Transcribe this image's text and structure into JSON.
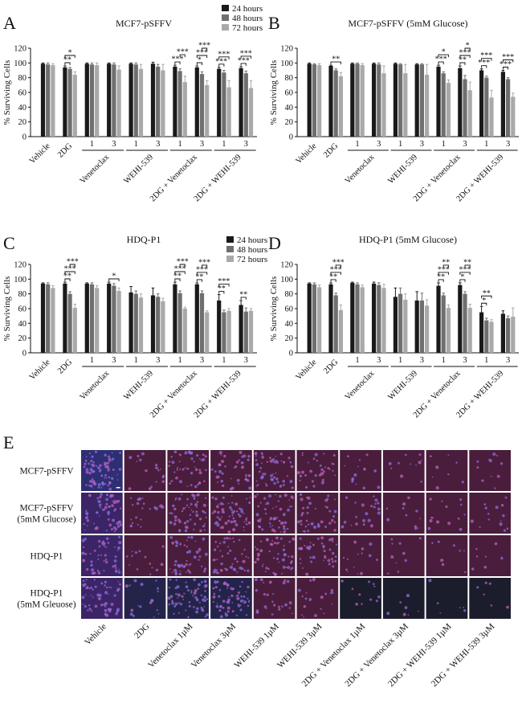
{
  "panel_letters": [
    "A",
    "B",
    "C",
    "D",
    "E"
  ],
  "colors": {
    "24h": "#1a1a1a",
    "48h": "#6f6f6f",
    "72h": "#a9a9a9"
  },
  "chart_data": [
    {
      "type": "bar",
      "panel": "A",
      "title": "MCF7-pSFFV",
      "ylabel": "% Surviving Cells",
      "ylim": [
        0,
        120
      ],
      "yticks": [
        0,
        20,
        40,
        60,
        80,
        100,
        120
      ],
      "legend": [
        "24 hours",
        "48 hours",
        "72 hours"
      ],
      "legend_position": "top-right",
      "categories": [
        "Vehicle",
        "2DG",
        "1",
        "3",
        "1",
        "3",
        "1",
        "3",
        "1",
        "3"
      ],
      "groups": [
        {
          "label": "Venetoclax",
          "from": 2,
          "to": 3
        },
        {
          "label": "WEHI-539",
          "from": 4,
          "to": 5
        },
        {
          "label": "2DG + Venetoclax",
          "from": 6,
          "to": 7
        },
        {
          "label": "2DG + WEHI-539",
          "from": 8,
          "to": 9
        }
      ],
      "series": [
        {
          "name": "24 hours",
          "values": [
            99,
            94,
            99,
            99,
            99,
            99,
            95,
            94,
            92,
            93
          ]
        },
        {
          "name": "48 hours",
          "values": [
            98,
            92,
            98,
            98,
            98,
            95,
            89,
            85,
            87,
            86
          ]
        },
        {
          "name": "72 hours",
          "values": [
            97,
            84,
            97,
            91,
            92,
            90,
            74,
            70,
            67,
            66
          ]
        }
      ],
      "errors": [
        [
          1,
          2,
          1,
          1,
          1,
          2,
          2,
          2,
          2,
          2
        ],
        [
          2,
          2,
          2,
          2,
          2,
          3,
          3,
          3,
          3,
          3
        ],
        [
          2,
          4,
          3,
          5,
          6,
          8,
          8,
          6,
          9,
          10
        ]
      ],
      "significance": [
        {
          "cat": 1,
          "pairs": [
            [
              "24h",
              "48h",
              "**"
            ],
            [
              "24h",
              "72h",
              "*"
            ]
          ]
        },
        {
          "cat": 6,
          "pairs": [
            [
              "24h",
              "48h",
              "***"
            ],
            [
              "48h",
              "72h",
              "***"
            ]
          ]
        },
        {
          "cat": 7,
          "pairs": [
            [
              "24h",
              "48h",
              "*"
            ],
            [
              "24h",
              "72h",
              "***"
            ],
            [
              "48h",
              "72h",
              "***"
            ]
          ]
        },
        {
          "cat": 8,
          "pairs": [
            [
              "24h",
              "48h",
              "***"
            ],
            [
              "24h",
              "72h",
              "***"
            ]
          ]
        },
        {
          "cat": 9,
          "pairs": [
            [
              "24h",
              "48h",
              "***"
            ],
            [
              "24h",
              "72h",
              "***"
            ]
          ]
        }
      ]
    },
    {
      "type": "bar",
      "panel": "B",
      "title": "MCF7-pSFFV (5mM Glucose)",
      "ylabel": "% Surviving Cells",
      "ylim": [
        0,
        120
      ],
      "yticks": [
        0,
        20,
        40,
        60,
        80,
        100,
        120
      ],
      "categories": [
        "Vehicle",
        "2DG",
        "1",
        "3",
        "1",
        "3",
        "1",
        "3",
        "1",
        "3"
      ],
      "groups": [
        {
          "label": "Venetoclax",
          "from": 2,
          "to": 3
        },
        {
          "label": "WEHI-539",
          "from": 4,
          "to": 5
        },
        {
          "label": "2DG + Venetoclax",
          "from": 6,
          "to": 7
        },
        {
          "label": "2DG + WEHI-539",
          "from": 8,
          "to": 9
        }
      ],
      "series": [
        {
          "name": "24 hours",
          "values": [
            99,
            96,
            99,
            99,
            99,
            98,
            95,
            93,
            90,
            88
          ]
        },
        {
          "name": "48 hours",
          "values": [
            98,
            90,
            99,
            98,
            98,
            98,
            86,
            78,
            80,
            78
          ]
        },
        {
          "name": "72 hours",
          "values": [
            97,
            82,
            97,
            86,
            86,
            84,
            73,
            63,
            53,
            54
          ]
        }
      ],
      "errors": [
        [
          1,
          1,
          1,
          1,
          1,
          1,
          2,
          3,
          2,
          2
        ],
        [
          1,
          2,
          1,
          2,
          1,
          1,
          2,
          5,
          2,
          2
        ],
        [
          2,
          5,
          2,
          10,
          12,
          14,
          4,
          11,
          10,
          5
        ]
      ],
      "significance": [
        {
          "cat": 1,
          "pairs": [
            [
              "24h",
              "72h",
              "**"
            ]
          ]
        },
        {
          "cat": 6,
          "pairs": [
            [
              "24h",
              "48h",
              "***"
            ],
            [
              "24h",
              "72h",
              "*"
            ]
          ]
        },
        {
          "cat": 7,
          "pairs": [
            [
              "24h",
              "48h",
              "**"
            ],
            [
              "24h",
              "72h",
              "***"
            ],
            [
              "48h",
              "72h",
              "*"
            ]
          ]
        },
        {
          "cat": 8,
          "pairs": [
            [
              "24h",
              "48h",
              "***"
            ],
            [
              "24h",
              "72h",
              "***"
            ]
          ]
        },
        {
          "cat": 9,
          "pairs": [
            [
              "24h",
              "48h",
              "***"
            ],
            [
              "24h",
              "72h",
              "***"
            ]
          ]
        }
      ]
    },
    {
      "type": "bar",
      "panel": "C",
      "title": "HDQ-P1",
      "ylabel": "% Surviving Cells",
      "ylim": [
        0,
        120
      ],
      "yticks": [
        0,
        20,
        40,
        60,
        80,
        100,
        120
      ],
      "legend": [
        "24 hours",
        "48 hours",
        "72 hours"
      ],
      "legend_position": "top-right",
      "categories": [
        "Vehicle",
        "2DG",
        "1",
        "3",
        "1",
        "3",
        "1",
        "3",
        "1",
        "3"
      ],
      "groups": [
        {
          "label": "Venetoclax",
          "from": 2,
          "to": 3
        },
        {
          "label": "WEHI-539",
          "from": 4,
          "to": 5
        },
        {
          "label": "2DG + Venetoclax",
          "from": 6,
          "to": 7
        },
        {
          "label": "2DG + WEHI-539",
          "from": 8,
          "to": 9
        }
      ],
      "series": [
        {
          "name": "24 hours",
          "values": [
            94,
            94,
            94,
            94,
            82,
            78,
            93,
            93,
            71,
            65
          ]
        },
        {
          "name": "48 hours",
          "values": [
            93,
            80,
            93,
            91,
            80,
            76,
            81,
            81,
            55,
            56
          ]
        },
        {
          "name": "72 hours",
          "values": [
            88,
            61,
            88,
            84,
            75,
            70,
            60,
            55,
            57,
            57
          ]
        }
      ],
      "errors": [
        [
          1,
          2,
          1,
          2,
          8,
          10,
          3,
          2,
          8,
          6
        ],
        [
          2,
          3,
          2,
          3,
          4,
          4,
          3,
          3,
          3,
          5
        ],
        [
          3,
          5,
          3,
          4,
          5,
          4,
          2,
          2,
          3,
          3
        ]
      ],
      "significance": [
        {
          "cat": 1,
          "pairs": [
            [
              "24h",
              "48h",
              "**"
            ],
            [
              "24h",
              "72h",
              "***"
            ],
            [
              "48h",
              "72h",
              "***"
            ]
          ]
        },
        {
          "cat": 3,
          "pairs": [
            [
              "24h",
              "72h",
              "*"
            ]
          ]
        },
        {
          "cat": 6,
          "pairs": [
            [
              "24h",
              "48h",
              "**"
            ],
            [
              "24h",
              "72h",
              "***"
            ],
            [
              "48h",
              "72h",
              "***"
            ]
          ]
        },
        {
          "cat": 7,
          "pairs": [
            [
              "24h",
              "48h",
              "**"
            ],
            [
              "24h",
              "72h",
              "***"
            ],
            [
              "48h",
              "72h",
              "***"
            ]
          ]
        },
        {
          "cat": 8,
          "pairs": [
            [
              "24h",
              "48h",
              "**"
            ],
            [
              "24h",
              "72h",
              "***"
            ]
          ]
        },
        {
          "cat": 9,
          "pairs": [
            [
              "24h",
              "48h",
              "**"
            ]
          ]
        }
      ]
    },
    {
      "type": "bar",
      "panel": "D",
      "title": "HDQ-P1 (5mM Glucose)",
      "ylabel": "% Surviving Cells",
      "ylim": [
        0,
        120
      ],
      "yticks": [
        0,
        20,
        40,
        60,
        80,
        100,
        120
      ],
      "categories": [
        "Vehicle",
        "2DG",
        "1",
        "3",
        "1",
        "3",
        "1",
        "3",
        "1",
        "3"
      ],
      "groups": [
        {
          "label": "Venetoclax",
          "from": 2,
          "to": 3
        },
        {
          "label": "WEHI-539",
          "from": 4,
          "to": 5
        },
        {
          "label": "2DG + Venetoclax",
          "from": 6,
          "to": 7
        },
        {
          "label": "2DG + WEHI-539",
          "from": 8,
          "to": 9
        }
      ],
      "series": [
        {
          "name": "24 hours",
          "values": [
            94,
            93,
            95,
            94,
            76,
            71,
            91,
            92,
            55,
            53
          ]
        },
        {
          "name": "48 hours",
          "values": [
            93,
            78,
            93,
            92,
            80,
            71,
            78,
            80,
            44,
            47
          ]
        },
        {
          "name": "72 hours",
          "values": [
            89,
            58,
            89,
            88,
            72,
            64,
            61,
            61,
            42,
            49
          ]
        }
      ],
      "errors": [
        [
          1,
          2,
          1,
          2,
          12,
          12,
          4,
          3,
          8,
          4
        ],
        [
          2,
          3,
          2,
          3,
          8,
          10,
          3,
          3,
          3,
          3
        ],
        [
          3,
          7,
          3,
          5,
          8,
          8,
          4,
          5,
          3,
          12
        ]
      ],
      "significance": [
        {
          "cat": 1,
          "pairs": [
            [
              "24h",
              "48h",
              "**"
            ],
            [
              "24h",
              "72h",
              "***"
            ],
            [
              "48h",
              "72h",
              "***"
            ]
          ]
        },
        {
          "cat": 6,
          "pairs": [
            [
              "24h",
              "48h",
              "**"
            ],
            [
              "24h",
              "72h",
              "***"
            ],
            [
              "48h",
              "72h",
              "**"
            ]
          ]
        },
        {
          "cat": 7,
          "pairs": [
            [
              "24h",
              "48h",
              "*"
            ],
            [
              "24h",
              "72h",
              "***"
            ],
            [
              "48h",
              "72h",
              "**"
            ]
          ]
        },
        {
          "cat": 8,
          "pairs": [
            [
              "24h",
              "48h",
              "*"
            ],
            [
              "24h",
              "72h",
              "**"
            ]
          ]
        }
      ]
    }
  ],
  "micrographs": {
    "row_labels": [
      [
        "MCF7-pSFFV"
      ],
      [
        "MCF7-pSFFV",
        "(5mM Glucose)"
      ],
      [
        "HDQ-P1"
      ],
      [
        "HDQ-P1",
        "(5mM Gleuose)"
      ]
    ],
    "column_labels": [
      "Vehicle",
      "2DG",
      "Venetoclax 1µM",
      "Venetoclax 3µM",
      "WEHI-539 1µM",
      "WEHI-539 3µM",
      "2DG + Venetoclax 1µM",
      "2DG + Venetoclax 3µM",
      "2DG + WEHI-539 1µM",
      "2DG + WEHI-539 3µM"
    ],
    "cell_density": [
      [
        1.0,
        0.25,
        0.65,
        0.6,
        0.75,
        0.45,
        0.2,
        0.15,
        0.12,
        0.15
      ],
      [
        0.9,
        0.3,
        0.85,
        0.85,
        0.8,
        0.55,
        0.3,
        0.15,
        0.2,
        0.2
      ],
      [
        0.7,
        0.2,
        0.7,
        0.65,
        0.7,
        0.55,
        0.2,
        0.15,
        0.12,
        0.12
      ],
      [
        0.85,
        0.25,
        0.9,
        0.9,
        0.4,
        0.3,
        0.15,
        0.1,
        0.08,
        0.08
      ]
    ]
  }
}
